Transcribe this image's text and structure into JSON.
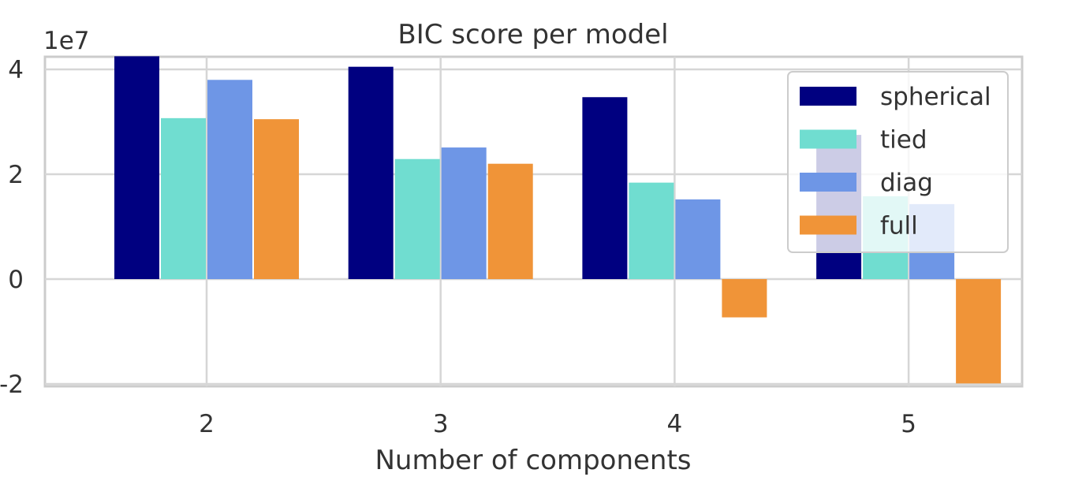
{
  "chart_data": {
    "type": "bar",
    "title": "BIC score per model",
    "xlabel": "Number of components",
    "ylabel": "",
    "y_offset_label": "1e7",
    "categories": [
      "2",
      "3",
      "4",
      "5"
    ],
    "yticks": [
      {
        "value": -2,
        "label": "-2"
      },
      {
        "value": 0,
        "label": "0"
      },
      {
        "value": 2,
        "label": "2"
      },
      {
        "value": 4,
        "label": "4"
      }
    ],
    "ylim": [
      -2.0,
      4.3
    ],
    "grid": true,
    "legend_position": "top-right",
    "series": [
      {
        "name": "spherical",
        "color": "#000080",
        "values": [
          4.25,
          4.05,
          3.47,
          2.75
        ]
      },
      {
        "name": "tied",
        "color": "#70DDD0",
        "values": [
          3.07,
          2.29,
          1.84,
          1.58
        ]
      },
      {
        "name": "diag",
        "color": "#6E96E6",
        "values": [
          3.8,
          2.51,
          1.52,
          1.43
        ]
      },
      {
        "name": "full",
        "color": "#F09438",
        "values": [
          3.05,
          2.2,
          -0.73,
          -1.99
        ]
      }
    ]
  }
}
